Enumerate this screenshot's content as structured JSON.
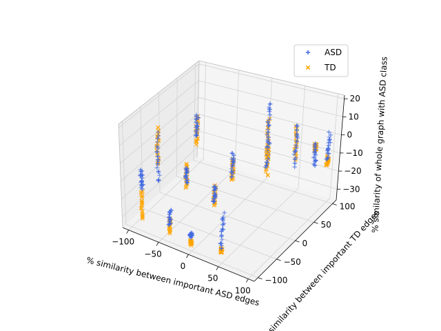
{
  "chart_data": {
    "type": "scatter",
    "projection": "3d",
    "xlabel": "% similarity between important ASD edges",
    "ylabel": "% similarity between important TD edges",
    "zlabel": "% similarity of whole graph with ASD class",
    "xlim": [
      -110,
      110
    ],
    "ylim": [
      -110,
      110
    ],
    "zlim": [
      -36,
      22
    ],
    "xticks": [
      "−100",
      "−50",
      "0",
      "50",
      "100"
    ],
    "yticks": [
      "−100",
      "−50",
      "0",
      "50",
      "100"
    ],
    "zticks": [
      "−30",
      "−20",
      "−10",
      "0",
      "10",
      "20"
    ],
    "grid": true,
    "legend": "top-right",
    "columns": [
      {
        "x": -85,
        "y": -95,
        "asd": [
          -3,
          -14
        ],
        "td": [
          -15,
          -30
        ]
      },
      {
        "x": -40,
        "y": -95,
        "asd": [
          -20,
          -28
        ],
        "td": [
          -25,
          -32
        ]
      },
      {
        "x": -5,
        "y": -95,
        "asd": [
          -28,
          -30
        ],
        "td": [
          -32,
          -34
        ]
      },
      {
        "x": 45,
        "y": -95,
        "asd": [
          -12,
          -30
        ],
        "td": [
          -30,
          -32
        ]
      },
      {
        "x": -90,
        "y": -40,
        "asd": [
          8,
          -20
        ],
        "td": [
          10,
          -10
        ]
      },
      {
        "x": -45,
        "y": -40,
        "asd": [
          -7,
          -15
        ],
        "td": [
          -5,
          -18
        ]
      },
      {
        "x": 0,
        "y": -40,
        "asd": [
          -12,
          -21
        ],
        "td": [
          -12,
          -23
        ]
      },
      {
        "x": 5,
        "y": 0,
        "asd": [
          -1,
          -13
        ],
        "td": [
          -4,
          -15
        ]
      },
      {
        "x": -60,
        "y": 15,
        "asd": [
          11,
          -1
        ],
        "td": [
          11,
          -5
        ]
      },
      {
        "x": 50,
        "y": 15,
        "asd": [
          9,
          -6
        ],
        "td": [
          5,
          -10
        ]
      },
      {
        "x": 25,
        "y": 60,
        "asd": [
          18,
          -5
        ],
        "td": [
          10,
          -12
        ]
      },
      {
        "x": 55,
        "y": 85,
        "asd": [
          5,
          -18
        ],
        "td": [
          4,
          -14
        ]
      },
      {
        "x": 80,
        "y": 95,
        "asd": [
          -5,
          -17
        ],
        "td": [
          -5,
          -9
        ]
      },
      {
        "x": 100,
        "y": 95,
        "asd": [
          3,
          -12
        ],
        "td": [
          -10,
          -15
        ]
      }
    ],
    "series": [
      {
        "name": "ASD",
        "marker": "+",
        "color": "#4169e1"
      },
      {
        "name": "TD",
        "marker": "x",
        "color": "#ffa500"
      }
    ]
  }
}
